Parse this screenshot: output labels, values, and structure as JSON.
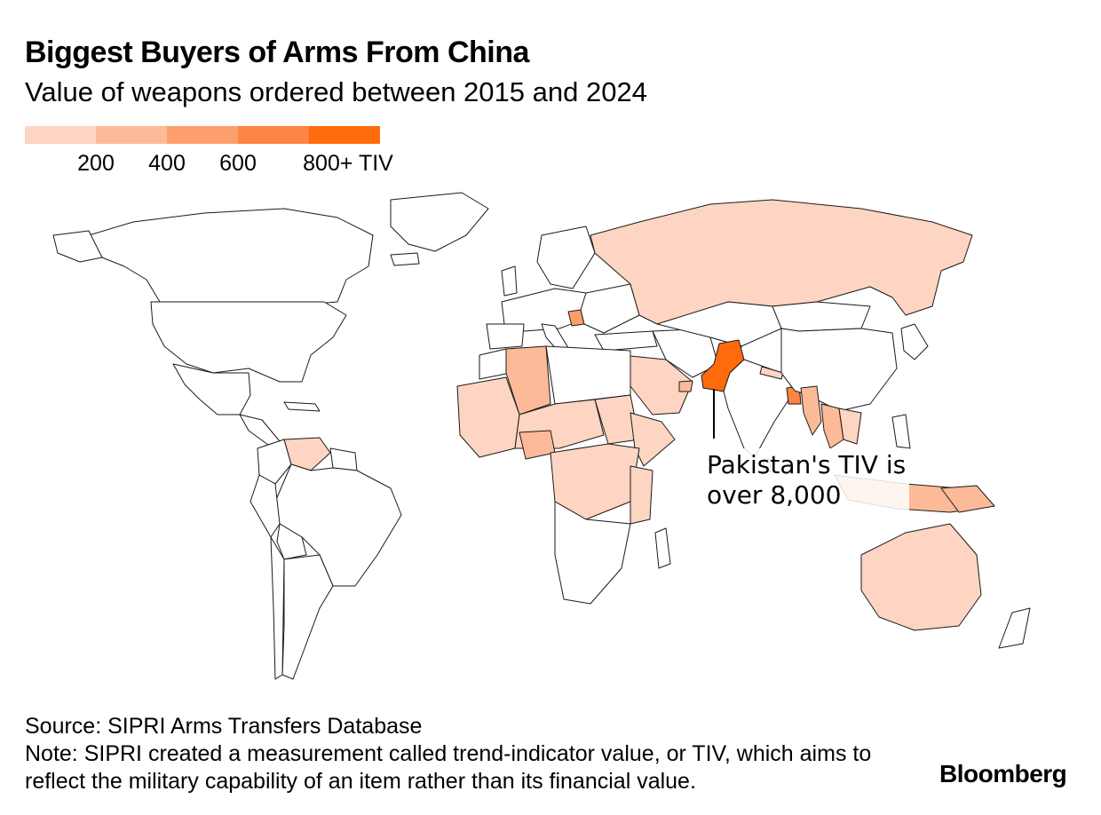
{
  "title": "Biggest Buyers of Arms From China",
  "subtitle": "Value of weapons ordered between 2015 and 2024",
  "legend": {
    "colors": [
      "#fdd5c2",
      "#fdba98",
      "#fd9f6c",
      "#fd8443",
      "#ff6a0d"
    ],
    "labels": [
      "200",
      "400",
      "600",
      "800+ TIV"
    ]
  },
  "map": {
    "projection": "world",
    "background": "#ffffff",
    "border_color": "#1a1a1a",
    "no_data_color": "#ffffff",
    "regions": [
      {
        "name": "Pakistan",
        "color": "#ff6a0d"
      },
      {
        "name": "Bangladesh",
        "color": "#fd8443"
      },
      {
        "name": "Serbia",
        "color": "#fd9f6c"
      },
      {
        "name": "Algeria",
        "color": "#fdba98"
      },
      {
        "name": "Myanmar",
        "color": "#fdba98"
      },
      {
        "name": "Thailand",
        "color": "#fdba98"
      },
      {
        "name": "Nigeria",
        "color": "#fdba98"
      },
      {
        "name": "Indonesia",
        "color": "#fdba98"
      },
      {
        "name": "Russia",
        "color": "#fdd5c2"
      },
      {
        "name": "Australia",
        "color": "#fdd5c2"
      },
      {
        "name": "Saudi Arabia",
        "color": "#fdd5c2"
      },
      {
        "name": "Venezuela",
        "color": "#fdd5c2"
      }
    ]
  },
  "callout": {
    "line1": "Pakistan's TIV is",
    "line2": "over 8,000"
  },
  "source": "Source: SIPRI Arms Transfers Database",
  "note": "Note: SIPRI created a measurement called trend-indicator value, or TIV, which aims to reflect the military capability of an item rather than its financial value.",
  "brand": "Bloomberg"
}
